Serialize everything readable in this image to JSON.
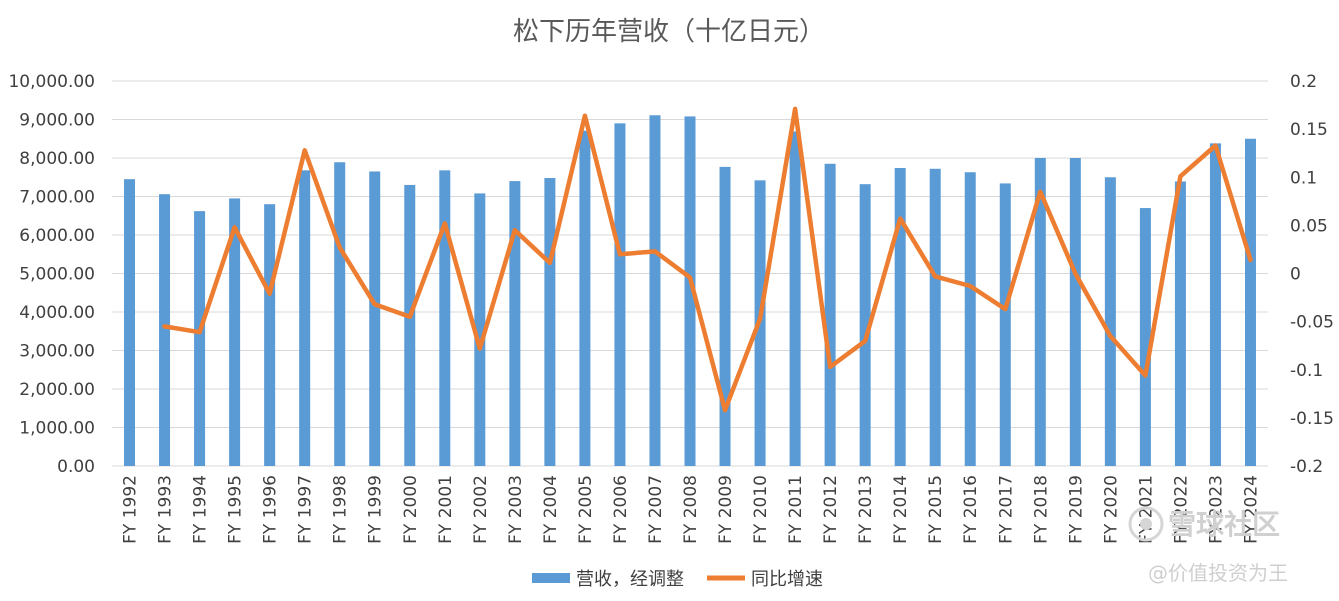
{
  "chart_data": {
    "type": "bar",
    "title": "松下历年营收（十亿日元）",
    "categories": [
      "FY 1992",
      "FY 1993",
      "FY 1994",
      "FY 1995",
      "FY 1996",
      "FY 1997",
      "FY 1998",
      "FY 1999",
      "FY 2000",
      "FY 2001",
      "FY 2002",
      "FY 2003",
      "FY 2004",
      "FY 2005",
      "FY 2006",
      "FY 2007",
      "FY 2008",
      "FY 2009",
      "FY 2010",
      "FY 2011",
      "FY 2012",
      "FY 2013",
      "FY 2014",
      "FY 2015",
      "FY 2016",
      "FY 2017",
      "FY 2018",
      "FY 2019",
      "FY 2020",
      "FY 2021",
      "FY 2022",
      "FY 2023",
      "FY 2024"
    ],
    "series": [
      {
        "name": "营收，经调整",
        "type": "bar",
        "axis": "left",
        "color": "#5b9bd5",
        "values": [
          7450,
          7060,
          6620,
          6950,
          6800,
          7680,
          7890,
          7650,
          7300,
          7680,
          7080,
          7400,
          7480,
          8710,
          8900,
          9110,
          9080,
          7770,
          7420,
          8690,
          7850,
          7320,
          7740,
          7720,
          7630,
          7340,
          8000,
          8000,
          7500,
          6700,
          7390,
          8380,
          8500
        ]
      },
      {
        "name": "同比增速",
        "type": "line",
        "axis": "right",
        "color": "#ed7d31",
        "values": [
          null,
          -0.055,
          -0.061,
          0.048,
          -0.021,
          0.128,
          0.027,
          -0.032,
          -0.045,
          0.052,
          -0.078,
          0.045,
          0.011,
          0.164,
          0.02,
          0.023,
          -0.004,
          -0.142,
          -0.047,
          0.171,
          -0.097,
          -0.07,
          0.057,
          -0.003,
          -0.013,
          -0.037,
          0.085,
          0.0,
          -0.065,
          -0.106,
          0.101,
          0.133,
          0.014
        ]
      }
    ],
    "yleft": {
      "lim": [
        0,
        10000
      ],
      "ticks": [
        "0.00",
        "1,000.00",
        "2,000.00",
        "3,000.00",
        "4,000.00",
        "5,000.00",
        "6,000.00",
        "7,000.00",
        "8,000.00",
        "9,000.00",
        "10,000.00"
      ]
    },
    "yright": {
      "lim": [
        -0.2,
        0.2
      ],
      "ticks": [
        "-0.2",
        "-0.15",
        "-0.1",
        "-0.05",
        "0",
        "0.05",
        "0.1",
        "0.15",
        "0.2"
      ]
    },
    "grid": true,
    "legend": "bottom"
  },
  "watermark": {
    "brand": "雪球社区",
    "handle": "@价值投资为王"
  }
}
